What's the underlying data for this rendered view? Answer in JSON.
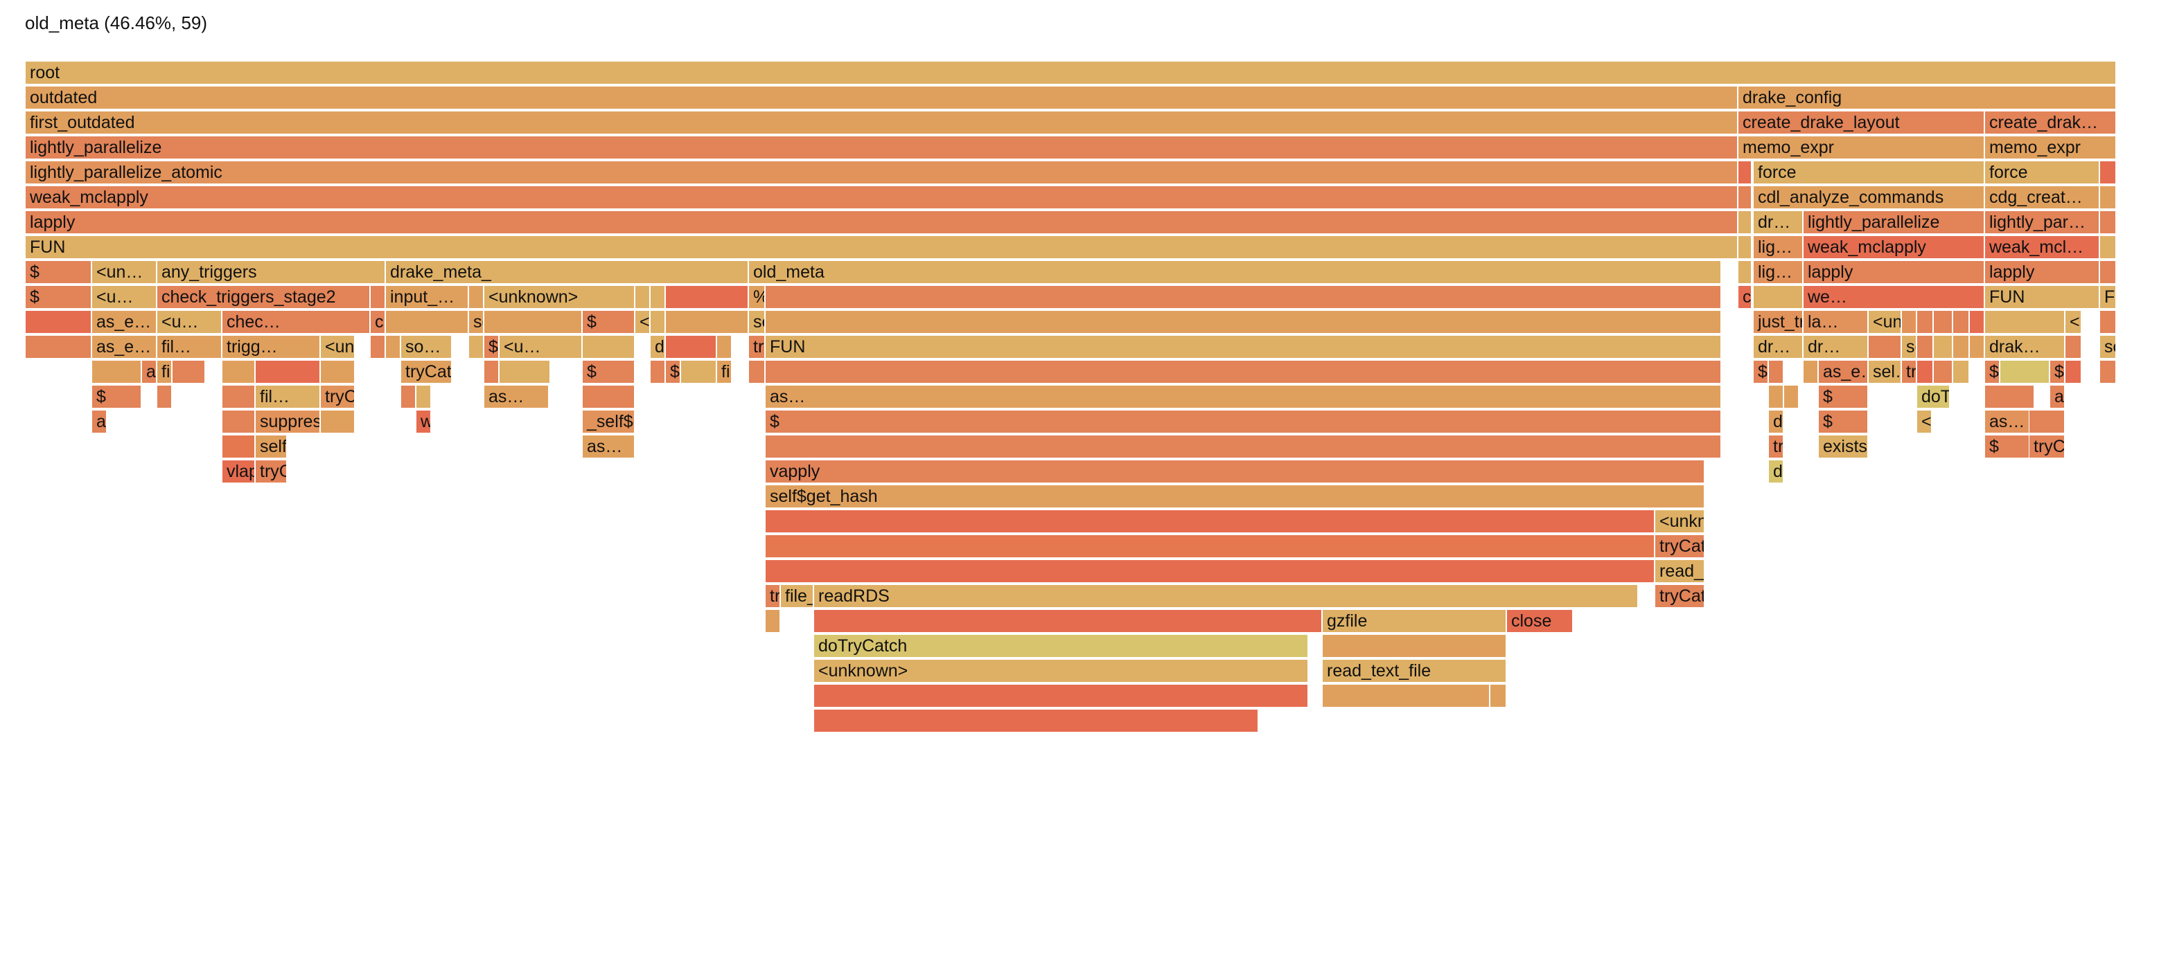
{
  "header": {
    "status": "old_meta (46.46%, 59)"
  },
  "colors": [
    "#DEB065",
    "#E0A05D",
    "#E28358",
    "#E2935B",
    "#E66C50",
    "#D8C46C",
    "#E5784E",
    "#E3874F"
  ],
  "frames": [
    {
      "label": "root",
      "color": 0
    },
    {
      "label": "outdated",
      "color": 1
    },
    {
      "label": "drake_config",
      "color": 1
    },
    {
      "label": "first_outdated",
      "color": 1
    },
    {
      "label": "create_drake_layout",
      "color": 2
    },
    {
      "label": "create_drak…",
      "color": 2
    },
    {
      "label": "lightly_parallelize",
      "color": 2
    },
    {
      "label": "memo_expr",
      "color": 1
    },
    {
      "label": "memo_expr",
      "color": 1
    },
    {
      "label": "lightly_parallelize_atomic",
      "color": 3
    },
    {
      "label": "",
      "color": 4
    },
    {
      "label": "force",
      "color": 0
    },
    {
      "label": "force",
      "color": 0
    },
    {
      "label": "",
      "color": 4
    },
    {
      "label": "weak_mclapply",
      "color": 2
    },
    {
      "label": "",
      "color": 2
    },
    {
      "label": "cdl_analyze_commands",
      "color": 1
    },
    {
      "label": "cdg_creat…",
      "color": 1
    },
    {
      "label": "",
      "color": 1
    },
    {
      "label": "lapply",
      "color": 2
    },
    {
      "label": "",
      "color": 0
    },
    {
      "label": "dr…",
      "color": 0
    },
    {
      "label": "lightly_parallelize",
      "color": 2
    },
    {
      "label": "lightly_par…",
      "color": 2
    },
    {
      "label": "",
      "color": 2
    },
    {
      "label": "FUN",
      "color": 0
    },
    {
      "label": "",
      "color": 0
    },
    {
      "label": "lig…",
      "color": 3
    },
    {
      "label": "weak_mclapply",
      "color": 4
    },
    {
      "label": "weak_mcl…",
      "color": 4
    },
    {
      "label": "",
      "color": 0
    },
    {
      "label": "$",
      "color": 2
    },
    {
      "label": "<un…",
      "color": 0
    },
    {
      "label": "any_triggers",
      "color": 0
    },
    {
      "label": "drake_meta_",
      "color": 0
    },
    {
      "label": "old_meta",
      "color": 0
    },
    {
      "label": "",
      "color": 0
    },
    {
      "label": "lig…",
      "color": 3
    },
    {
      "label": "lapply",
      "color": 2
    },
    {
      "label": "lapply",
      "color": 2
    },
    {
      "label": "",
      "color": 2
    },
    {
      "label": "$",
      "color": 2
    },
    {
      "label": "<u…",
      "color": 0
    },
    {
      "label": "check_triggers_stage2",
      "color": 2
    },
    {
      "label": "",
      "color": 2
    },
    {
      "label": "input_…",
      "color": 1
    },
    {
      "label": "",
      "color": 1
    },
    {
      "label": "<unknown>",
      "color": 0
    },
    {
      "label": "",
      "color": 0
    },
    {
      "label": "",
      "color": 0
    },
    {
      "label": "",
      "color": 4
    },
    {
      "label": "%||NA…",
      "color": 1
    },
    {
      "label": "",
      "color": 2
    },
    {
      "label": "cache$safe_get",
      "color": 4
    },
    {
      "label": "",
      "color": 0
    },
    {
      "label": "we…",
      "color": 4
    },
    {
      "label": "FUN",
      "color": 0
    },
    {
      "label": "FUN",
      "color": 0
    },
    {
      "label": "",
      "color": 4
    },
    {
      "label": "as_e…",
      "color": 1
    },
    {
      "label": "<u…",
      "color": 0
    },
    {
      "label": "chec…",
      "color": 2
    },
    {
      "label": "check_trigger…",
      "color": 2
    },
    {
      "label": "",
      "color": 1
    },
    {
      "label": "sort",
      "color": 1
    },
    {
      "label": "",
      "color": 1
    },
    {
      "label": "$",
      "color": 2
    },
    {
      "label": "<u…",
      "color": 0
    },
    {
      "label": "",
      "color": 0
    },
    {
      "label": "",
      "color": 1
    },
    {
      "label": "seed_f…",
      "color": 0
    },
    {
      "label": "",
      "color": 1
    },
    {
      "label": "just_try",
      "color": 3
    },
    {
      "label": "la…",
      "color": 3
    },
    {
      "label": "<un…",
      "color": 0
    },
    {
      "label": "",
      "color": 3
    },
    {
      "label": "",
      "color": 2
    },
    {
      "label": "",
      "color": 2
    },
    {
      "label": "",
      "color": 2
    },
    {
      "label": "",
      "color": 4
    },
    {
      "label": "",
      "color": 0
    },
    {
      "label": "<unkn…",
      "color": 0
    },
    {
      "label": "",
      "color": 2
    },
    {
      "label": "",
      "color": 2
    },
    {
      "label": "as_e…",
      "color": 1
    },
    {
      "label": "fil…",
      "color": 1
    },
    {
      "label": "trigg…",
      "color": 1
    },
    {
      "label": "<unkno…",
      "color": 0
    },
    {
      "label": "",
      "color": 2
    },
    {
      "label": "",
      "color": 1
    },
    {
      "label": "so…",
      "color": 0
    },
    {
      "label": "",
      "color": 0
    },
    {
      "label": "$",
      "color": 2
    },
    {
      "label": "<u…",
      "color": 0
    },
    {
      "label": "",
      "color": 0
    },
    {
      "label": "di…",
      "color": 0
    },
    {
      "label": "",
      "color": 4
    },
    {
      "label": "",
      "color": 1
    },
    {
      "label": "try",
      "color": 2
    },
    {
      "label": "FUN",
      "color": 0
    },
    {
      "label": "dr…",
      "color": 0
    },
    {
      "label": "dr…",
      "color": 0
    },
    {
      "label": "",
      "color": 2
    },
    {
      "label": "sel…",
      "color": 0
    },
    {
      "label": "",
      "color": 2
    },
    {
      "label": "",
      "color": 0
    },
    {
      "label": "",
      "color": 1
    },
    {
      "label": "",
      "color": 1
    },
    {
      "label": "drak…",
      "color": 0
    },
    {
      "label": "",
      "color": 2
    },
    {
      "label": "so…",
      "color": 0
    },
    {
      "label": "",
      "color": 1
    },
    {
      "label": "as_e…",
      "color": 2
    },
    {
      "label": "fil…",
      "color": 1
    },
    {
      "label": "",
      "color": 2
    },
    {
      "label": "",
      "color": 1
    },
    {
      "label": "",
      "color": 4
    },
    {
      "label": "",
      "color": 1
    },
    {
      "label": "tryCatch",
      "color": 1
    },
    {
      "label": "",
      "color": 2
    },
    {
      "label": "",
      "color": 0
    },
    {
      "label": "$",
      "color": 2
    },
    {
      "label": "",
      "color": 2
    },
    {
      "label": "$",
      "color": 2
    },
    {
      "label": "",
      "color": 0
    },
    {
      "label": "fil…",
      "color": 1
    },
    {
      "label": "",
      "color": 2
    },
    {
      "label": "",
      "color": 2
    },
    {
      "label": "$",
      "color": 2
    },
    {
      "label": "",
      "color": 2
    },
    {
      "label": "",
      "color": 1
    },
    {
      "label": "as_e…",
      "color": 2
    },
    {
      "label": "sel…",
      "color": 0
    },
    {
      "label": "tryCatchList",
      "color": 2
    },
    {
      "label": "",
      "color": 4
    },
    {
      "label": "",
      "color": 2
    },
    {
      "label": "",
      "color": 0
    },
    {
      "label": "$",
      "color": 2
    },
    {
      "label": "",
      "color": 5
    },
    {
      "label": "$",
      "color": 2
    },
    {
      "label": "",
      "color": 4
    },
    {
      "label": "",
      "color": 2
    },
    {
      "label": "$",
      "color": 2
    },
    {
      "label": "",
      "color": 2
    },
    {
      "label": "",
      "color": 2
    },
    {
      "label": "fil…",
      "color": 0
    },
    {
      "label": "tryCatchOne",
      "color": 3
    },
    {
      "label": "",
      "color": 2
    },
    {
      "label": "",
      "color": 0
    },
    {
      "label": "as…",
      "color": 1
    },
    {
      "label": "",
      "color": 2
    },
    {
      "label": "as…",
      "color": 1
    },
    {
      "label": "",
      "color": 1
    },
    {
      "label": "",
      "color": 1
    },
    {
      "label": "$",
      "color": 2
    },
    {
      "label": "doTryCatch",
      "color": 5
    },
    {
      "label": "",
      "color": 2
    },
    {
      "label": "as…",
      "color": 2
    },
    {
      "label": "as…",
      "color": 2
    },
    {
      "label": "",
      "color": 2
    },
    {
      "label": "suppressWarnings",
      "color": 3
    },
    {
      "label": "",
      "color": 1
    },
    {
      "label": "withCallingHandlers",
      "color": 4
    },
    {
      "label": "_self$get",
      "color": 3
    },
    {
      "label": "$",
      "color": 2
    },
    {
      "label": "dcst_get",
      "color": 1
    },
    {
      "label": "$",
      "color": 2
    },
    {
      "label": "<unknown>",
      "color": 0
    },
    {
      "label": "as…",
      "color": 3
    },
    {
      "label": "",
      "color": 2
    },
    {
      "label": "",
      "color": 6
    },
    {
      "label": "self$get_value",
      "color": 1
    },
    {
      "label": "as…",
      "color": 1
    },
    {
      "label": "",
      "color": 2
    },
    {
      "label": "tryCatch",
      "color": 2
    },
    {
      "label": "exists0",
      "color": 0
    },
    {
      "label": "$",
      "color": 2
    },
    {
      "label": "tryCatchList",
      "color": 2
    },
    {
      "label": "vlapply",
      "color": 4
    },
    {
      "label": "tryCatchOne",
      "color": 2
    },
    {
      "label": "vapply",
      "color": 2
    },
    {
      "label": "doTryCatch",
      "color": 5
    },
    {
      "label": "self$get_hash",
      "color": 1
    },
    {
      "label": "",
      "color": 4
    },
    {
      "label": "<unknown>",
      "color": 0
    },
    {
      "label": "",
      "color": 6
    },
    {
      "label": "tryCatch",
      "color": 2
    },
    {
      "label": "",
      "color": 4
    },
    {
      "label": "read_rds",
      "color": 0
    },
    {
      "label": "tryCatchList",
      "color": 2
    },
    {
      "label": "file_ex…",
      "color": 0
    },
    {
      "label": "readRDS",
      "color": 0
    },
    {
      "label": "tryCatchOne",
      "color": 2
    },
    {
      "label": "",
      "color": 1
    },
    {
      "label": "",
      "color": 4
    },
    {
      "label": "gzfile",
      "color": 0
    },
    {
      "label": "close",
      "color": 4
    },
    {
      "label": "doTryCatch",
      "color": 5
    },
    {
      "label": "",
      "color": 1
    },
    {
      "label": "<unknown>",
      "color": 0
    },
    {
      "label": "read_text_file",
      "color": 0
    },
    {
      "label": "",
      "color": 4
    },
    {
      "label": "",
      "color": 1
    },
    {
      "label": "",
      "color": 1
    },
    {
      "label": "",
      "color": 4
    }
  ]
}
